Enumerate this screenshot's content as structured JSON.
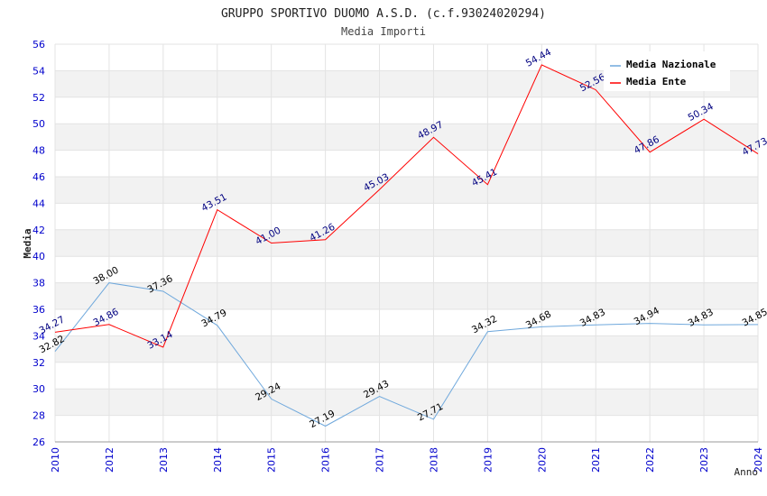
{
  "chart_data": {
    "type": "line",
    "title": "GRUPPO SPORTIVO DUOMO A.S.D. (c.f.93024020294)",
    "subtitle": "Media Importi",
    "xlabel": "Anno",
    "ylabel": "Media",
    "ylim": [
      26,
      56
    ],
    "yticks": [
      "26",
      "28",
      "30",
      "32",
      "34",
      "36",
      "38",
      "40",
      "42",
      "44",
      "46",
      "48",
      "50",
      "52",
      "54",
      "56"
    ],
    "categories": [
      "2010",
      "2012",
      "2013",
      "2014",
      "2015",
      "2016",
      "2017",
      "2018",
      "2019",
      "2020",
      "2021",
      "2022",
      "2023",
      "2024"
    ],
    "series": [
      {
        "name": "Media Nazionale",
        "color": "#6fa8dc",
        "values": [
          32.82,
          38.0,
          37.36,
          34.79,
          29.24,
          27.19,
          29.43,
          27.71,
          34.32,
          34.68,
          34.83,
          34.94,
          34.83,
          34.85
        ],
        "labels": [
          "32.82",
          "38.00",
          "37.36",
          "34.79",
          "29.24",
          "27.19",
          "29.43",
          "27.71",
          "34.32",
          "34.68",
          "34.83",
          "34.94",
          "34.83",
          "34.85"
        ]
      },
      {
        "name": "Media Ente",
        "color": "#ff0000",
        "values": [
          34.27,
          34.86,
          33.14,
          43.51,
          41.0,
          41.26,
          45.03,
          48.97,
          45.41,
          54.44,
          52.56,
          47.86,
          50.34,
          47.73
        ],
        "labels": [
          "34.27",
          "34.86",
          "33.14",
          "43.51",
          "41.00",
          "41.26",
          "45.03",
          "48.97",
          "45.41",
          "54.44",
          "52.56",
          "47.86",
          "50.34",
          "47.73"
        ]
      }
    ],
    "legend": {
      "position": "top-right",
      "items": [
        "Media Nazionale",
        "Media Ente"
      ]
    },
    "grid": true
  }
}
